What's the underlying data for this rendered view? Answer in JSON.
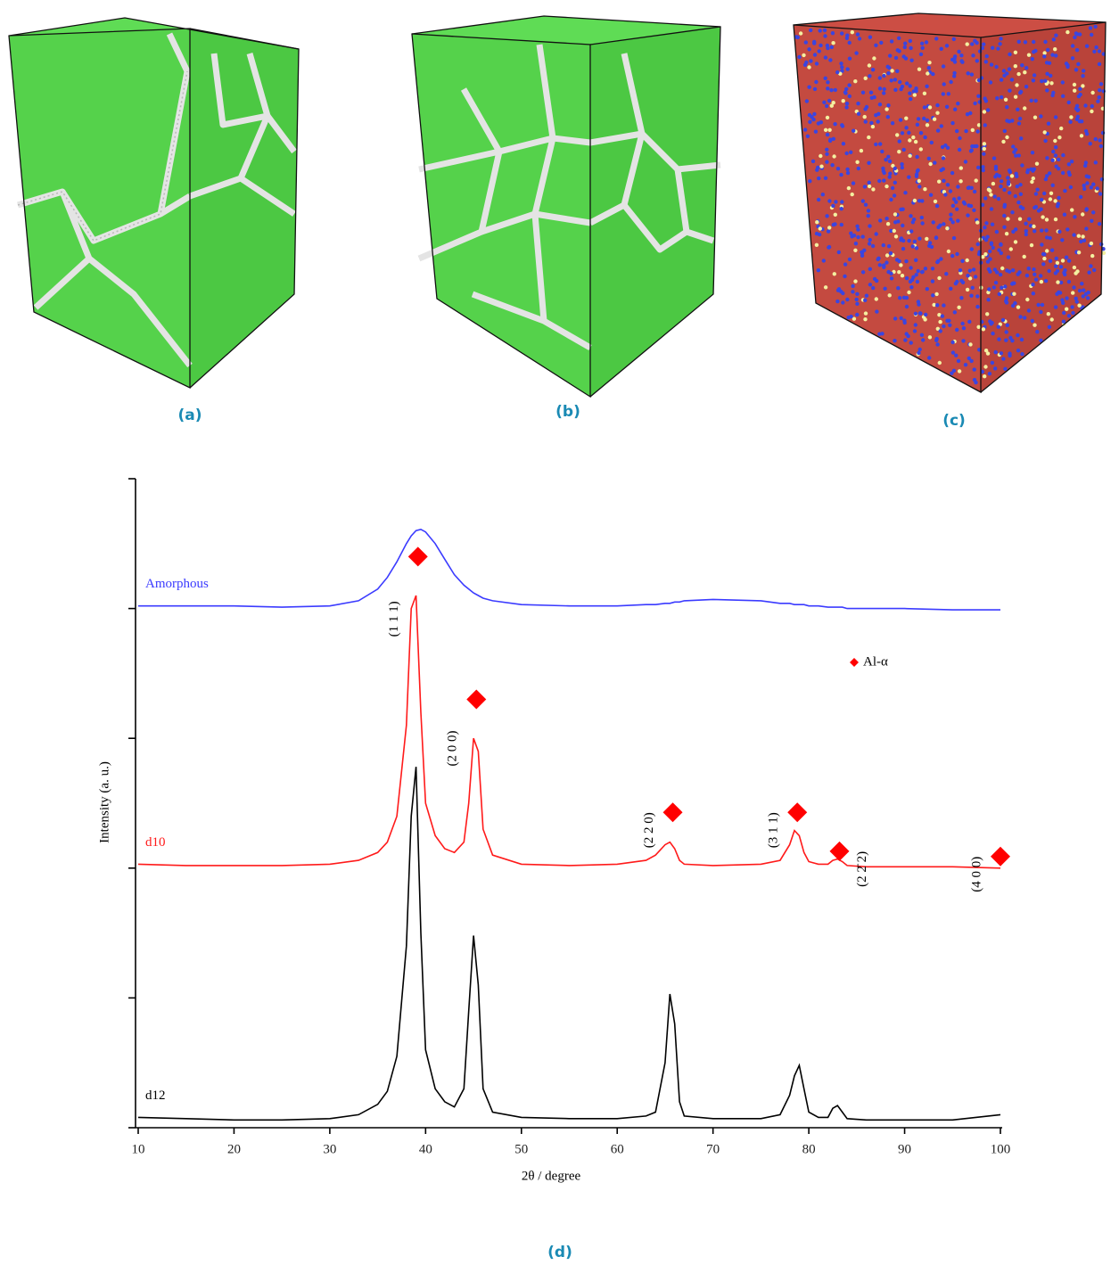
{
  "panel_labels": [
    "(a)",
    "(b)",
    "(c)",
    "(d)"
  ],
  "chart_data": {
    "type": "line",
    "xlabel": "2θ / degree",
    "ylabel": "Intensity (a. u.)",
    "xlim": [
      10,
      100
    ],
    "xticks": [
      10,
      20,
      30,
      40,
      50,
      60,
      70,
      80,
      90,
      100
    ],
    "ylim": [
      0,
      5
    ],
    "yticks": [
      0,
      1,
      2,
      3,
      4,
      5
    ],
    "x": [
      10,
      15,
      20,
      25,
      30,
      33,
      35,
      36,
      37,
      38,
      38.5,
      39,
      39.5,
      40,
      41,
      42,
      43,
      44,
      44.5,
      45,
      45.5,
      46,
      47,
      50,
      55,
      60,
      63,
      64,
      65,
      65.5,
      66,
      66.5,
      67,
      70,
      75,
      77,
      78,
      78.5,
      79,
      79.5,
      80,
      81,
      82,
      82.5,
      83,
      83.5,
      84,
      86,
      90,
      95,
      100
    ],
    "series": [
      {
        "name": "Amorphous",
        "color": "#3b3bff",
        "values": [
          4.02,
          4.02,
          4.02,
          4.01,
          4.02,
          4.06,
          4.15,
          4.24,
          4.36,
          4.5,
          4.56,
          4.6,
          4.61,
          4.59,
          4.5,
          4.38,
          4.26,
          4.18,
          4.15,
          4.12,
          4.1,
          4.08,
          4.06,
          4.03,
          4.02,
          4.02,
          4.03,
          4.03,
          4.04,
          4.04,
          4.05,
          4.05,
          4.06,
          4.07,
          4.06,
          4.04,
          4.04,
          4.03,
          4.03,
          4.03,
          4.02,
          4.02,
          4.01,
          4.01,
          4.01,
          4.01,
          4.0,
          4.0,
          4.0,
          3.99,
          3.99
        ]
      },
      {
        "name": "d10",
        "color": "#ff1a1a",
        "values": [
          2.03,
          2.02,
          2.02,
          2.02,
          2.03,
          2.06,
          2.12,
          2.2,
          2.4,
          3.1,
          4.0,
          4.1,
          3.2,
          2.5,
          2.25,
          2.15,
          2.12,
          2.2,
          2.5,
          3.0,
          2.9,
          2.3,
          2.1,
          2.03,
          2.02,
          2.03,
          2.06,
          2.1,
          2.18,
          2.2,
          2.15,
          2.06,
          2.03,
          2.02,
          2.03,
          2.06,
          2.18,
          2.29,
          2.25,
          2.12,
          2.05,
          2.03,
          2.03,
          2.06,
          2.07,
          2.05,
          2.02,
          2.01,
          2.01,
          2.01,
          2.0
        ]
      },
      {
        "name": "d12",
        "color": "#000000",
        "values": [
          0.08,
          0.07,
          0.06,
          0.06,
          0.07,
          0.1,
          0.18,
          0.28,
          0.55,
          1.4,
          2.4,
          2.78,
          1.5,
          0.6,
          0.3,
          0.2,
          0.16,
          0.3,
          0.9,
          1.48,
          1.1,
          0.3,
          0.12,
          0.08,
          0.07,
          0.07,
          0.09,
          0.12,
          0.5,
          1.03,
          0.8,
          0.2,
          0.09,
          0.07,
          0.07,
          0.1,
          0.25,
          0.4,
          0.48,
          0.3,
          0.12,
          0.08,
          0.08,
          0.15,
          0.17,
          0.12,
          0.07,
          0.06,
          0.06,
          0.06,
          0.1
        ]
      }
    ],
    "markers": {
      "name": "Al-α",
      "color": "#ff0000",
      "x": [
        39.2,
        45.3,
        65.8,
        78.8,
        83.2,
        100
      ],
      "y": [
        4.4,
        3.3,
        2.43,
        2.43,
        2.13,
        2.09
      ],
      "labels": [
        "(1 1 1)",
        "(2 0 0)",
        "(2 2 0)",
        "(3 1 1)",
        "(2 2̄ 2)",
        "(4 0 0)"
      ]
    },
    "legend": "upper-right"
  }
}
